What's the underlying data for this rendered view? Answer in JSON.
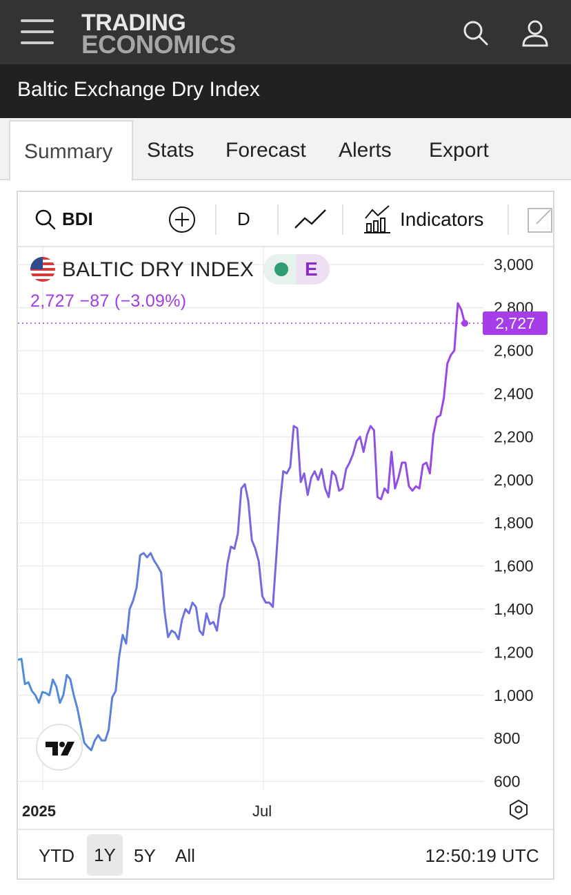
{
  "header": {
    "menu_icon": "hamburger-icon",
    "logo_line1": "TRADING",
    "logo_line2": "ECONOMICS",
    "search_icon": "search-icon",
    "user_icon": "user-icon"
  },
  "page": {
    "title": "Baltic Exchange Dry Index"
  },
  "tabs": [
    {
      "label": "Summary",
      "active": true
    },
    {
      "label": "Stats"
    },
    {
      "label": "Forecast"
    },
    {
      "label": "Alerts"
    },
    {
      "label": "Export"
    }
  ],
  "toolbar": {
    "symbol": "BDI",
    "interval": "D",
    "indicators_label": "Indicators"
  },
  "legend": {
    "name": "BALTIC DRY INDEX",
    "badge": "E",
    "last": "2,727",
    "change": "−87",
    "change_pct": "(−3.09%)"
  },
  "price_tag": "2,727",
  "range_buttons": [
    {
      "label": "YTD"
    },
    {
      "label": "1Y",
      "active": true
    },
    {
      "label": "5Y"
    },
    {
      "label": "All"
    }
  ],
  "clock": "12:50:19 UTC",
  "colors": {
    "line_start": "#4a90d9",
    "line_end": "#a53ee6",
    "accent": "#a53ee6",
    "grid": "#ececec"
  },
  "chart_data": {
    "type": "line",
    "title": "BALTIC DRY INDEX",
    "x_tick_labels": [
      "2025",
      "Jul"
    ],
    "y_ticks": [
      600,
      800,
      1000,
      1200,
      1400,
      1600,
      1800,
      2000,
      2200,
      2400,
      2600,
      2800,
      3000
    ],
    "ylim": [
      560,
      3080
    ],
    "grid": true,
    "series": [
      {
        "values": [
          1164,
          1169,
          1052,
          1060,
          1020,
          1000,
          965,
          1015,
          1010,
          1000,
          1073,
          1040,
          965,
          1000,
          1094,
          1075,
          1000,
          940,
          860,
          780,
          760,
          745,
          790,
          815,
          790,
          790,
          840,
          990,
          1020,
          1180,
          1280,
          1240,
          1400,
          1440,
          1500,
          1650,
          1660,
          1640,
          1660,
          1625,
          1600,
          1570,
          1390,
          1270,
          1300,
          1290,
          1260,
          1350,
          1400,
          1380,
          1430,
          1410,
          1300,
          1280,
          1380,
          1330,
          1340,
          1300,
          1420,
          1460,
          1610,
          1690,
          1680,
          1750,
          1960,
          1980,
          1900,
          1720,
          1680,
          1620,
          1460,
          1430,
          1430,
          1410,
          1640,
          1880,
          2040,
          2030,
          2060,
          2250,
          2240,
          1990,
          2030,
          1930,
          2010,
          2040,
          2000,
          2050,
          1960,
          1920,
          2040,
          2020,
          1950,
          1960,
          2050,
          2080,
          2120,
          2180,
          2200,
          2130,
          2210,
          2250,
          2230,
          1920,
          1910,
          1960,
          1940,
          2130,
          1960,
          2010,
          2080,
          2080,
          1970,
          1950,
          1970,
          1960,
          2070,
          2080,
          2030,
          2210,
          2290,
          2300,
          2380,
          2540,
          2580,
          2600,
          2820,
          2790,
          2727
        ]
      }
    ]
  }
}
